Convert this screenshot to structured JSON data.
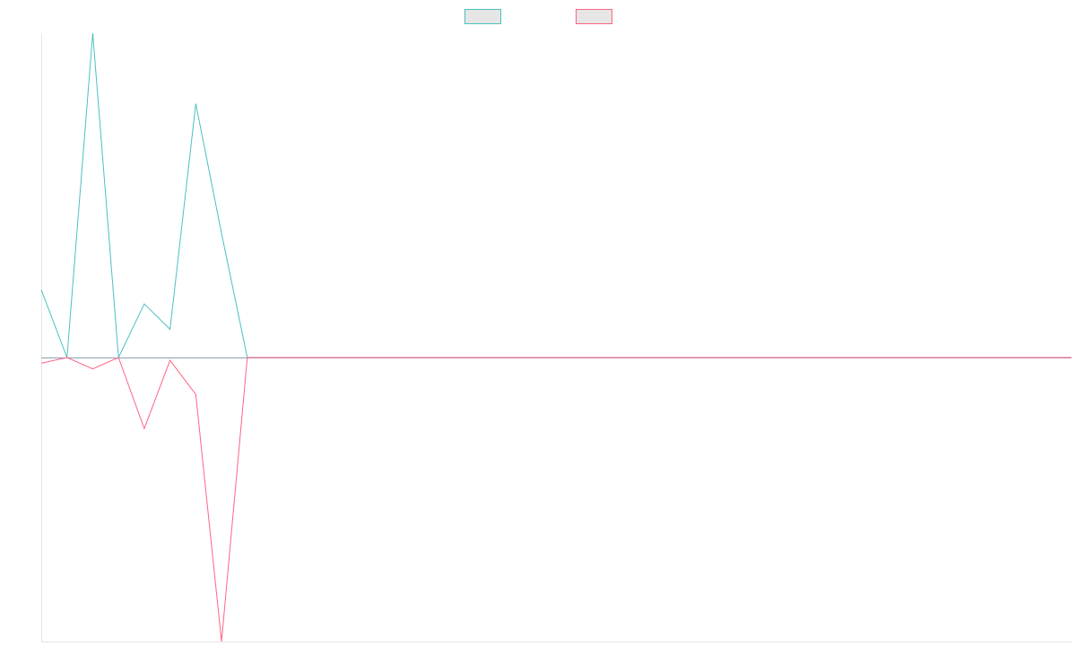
{
  "colors": {
    "series_a": "#4bc0c0",
    "series_b": "#ff6384",
    "legend_fill": "#e6e6e6",
    "axis": "#e5e5e5",
    "zero_line": "#8aa0b3"
  },
  "chart_data": {
    "type": "line",
    "title": "",
    "xlabel": "",
    "ylabel": "",
    "legend": "top-center",
    "grid": false,
    "ylim": [
      -1,
      1.15
    ],
    "x": [
      0,
      1,
      2,
      3,
      4,
      5,
      6,
      7,
      8,
      9,
      10,
      11,
      12,
      13,
      14,
      15,
      16,
      17,
      18,
      19,
      20,
      21,
      22,
      23,
      24,
      25,
      26,
      27,
      28,
      29,
      30,
      31,
      32,
      33,
      34,
      35,
      36,
      37,
      38,
      39,
      40
    ],
    "series": [
      {
        "name": "",
        "color_key": "series_a",
        "values": [
          0.24,
          0,
          1.15,
          0,
          0.19,
          0.1,
          0.9,
          0.44,
          0,
          0,
          0,
          0,
          0,
          0,
          0,
          0,
          0,
          0,
          0,
          0,
          0,
          0,
          0,
          0,
          0,
          0,
          0,
          0,
          0,
          0,
          0,
          0,
          0,
          0,
          0,
          0,
          0,
          0,
          0,
          0,
          0
        ]
      },
      {
        "name": "",
        "color_key": "series_b",
        "values": [
          -0.02,
          0,
          -0.04,
          0,
          -0.25,
          -0.01,
          -0.13,
          -1,
          0,
          0,
          0,
          0,
          0,
          0,
          0,
          0,
          0,
          0,
          0,
          0,
          0,
          0,
          0,
          0,
          0,
          0,
          0,
          0,
          0,
          0,
          0,
          0,
          0,
          0,
          0,
          0,
          0,
          0,
          0,
          0,
          0
        ]
      }
    ]
  }
}
